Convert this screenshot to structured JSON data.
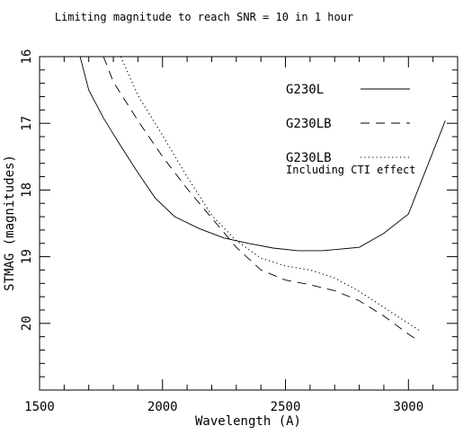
{
  "chart_data": {
    "type": "line",
    "title": "Limiting magnitude to reach SNR = 10 in 1 hour",
    "xlabel": "Wavelength (A)",
    "ylabel": "STMAG (magnitudes)",
    "xlim": [
      1500,
      3200
    ],
    "ylim": [
      21.0,
      16.0
    ],
    "y_inverted": true,
    "grid": false,
    "xticks": [
      1500,
      2000,
      2500,
      3000
    ],
    "yticks": [
      16,
      17,
      18,
      19,
      20
    ],
    "x_minor_step": 100,
    "y_minor_step": 0.2,
    "legend_placement": "top-right",
    "series": [
      {
        "name": "G230L",
        "style": "solid",
        "x": [
          1665,
          1700,
          1760,
          1830,
          1900,
          1970,
          2050,
          2150,
          2250,
          2350,
          2450,
          2550,
          2650,
          2800,
          2900,
          3000,
          3150
        ],
        "y": [
          16.0,
          16.5,
          16.92,
          17.34,
          17.74,
          18.12,
          18.4,
          18.58,
          18.72,
          18.8,
          18.87,
          18.91,
          18.91,
          18.86,
          18.65,
          18.36,
          16.96
        ]
      },
      {
        "name": "G230LB",
        "style": "dashed",
        "x": [
          1760,
          1800,
          1900,
          2000,
          2100,
          2200,
          2300,
          2400,
          2500,
          2600,
          2700,
          2800,
          2900,
          3000,
          3040
        ],
        "y": [
          16.0,
          16.38,
          16.96,
          17.5,
          17.98,
          18.42,
          18.86,
          19.2,
          19.35,
          19.42,
          19.51,
          19.66,
          19.89,
          20.16,
          20.26
        ]
      },
      {
        "name": "G230LB",
        "sublabel": "Including CTI effect",
        "style": "dotted",
        "x": [
          1830,
          1900,
          2000,
          2100,
          2200,
          2300,
          2400,
          2500,
          2600,
          2700,
          2800,
          2900,
          3000,
          3050
        ],
        "y": [
          16.0,
          16.58,
          17.18,
          17.8,
          18.38,
          18.76,
          19.02,
          19.14,
          19.2,
          19.32,
          19.52,
          19.76,
          20.0,
          20.12
        ]
      }
    ]
  }
}
